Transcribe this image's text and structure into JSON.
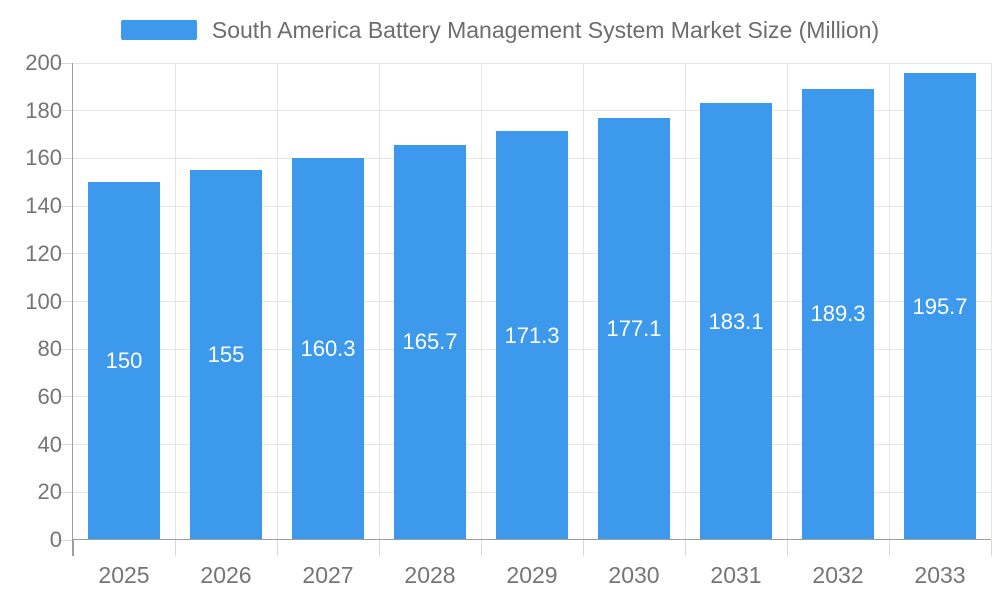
{
  "legend": {
    "label": "South America Battery Management System Market Size (Million)"
  },
  "chart_data": {
    "type": "bar",
    "title": "South America Battery Management System Market Size (Million)",
    "categories": [
      "2025",
      "2026",
      "2027",
      "2028",
      "2029",
      "2030",
      "2031",
      "2032",
      "2033"
    ],
    "values": [
      150,
      155,
      160.3,
      165.7,
      171.3,
      177.1,
      183.1,
      189.3,
      195.7
    ],
    "value_labels": [
      "150",
      "155",
      "160.3",
      "165.7",
      "171.3",
      "177.1",
      "183.1",
      "189.3",
      "195.7"
    ],
    "y_tick_labels": [
      "0",
      "20",
      "40",
      "60",
      "80",
      "100",
      "120",
      "140",
      "160",
      "180",
      "200"
    ],
    "xlabel": "",
    "ylabel": "",
    "ylim": [
      0,
      200
    ],
    "ytick_step": 20,
    "grid": true,
    "legend_position": "top",
    "value_label_position": "inside-center",
    "colors": {
      "bar": "#3c99ec",
      "axis_line": "#9e9e9e",
      "gridline": "#e6e6e6",
      "tick": "#d9d9d9",
      "axis_label": "#757575",
      "legend_text": "#6d6d6d",
      "value_label": "#ffffff",
      "background": "#ffffff"
    }
  }
}
